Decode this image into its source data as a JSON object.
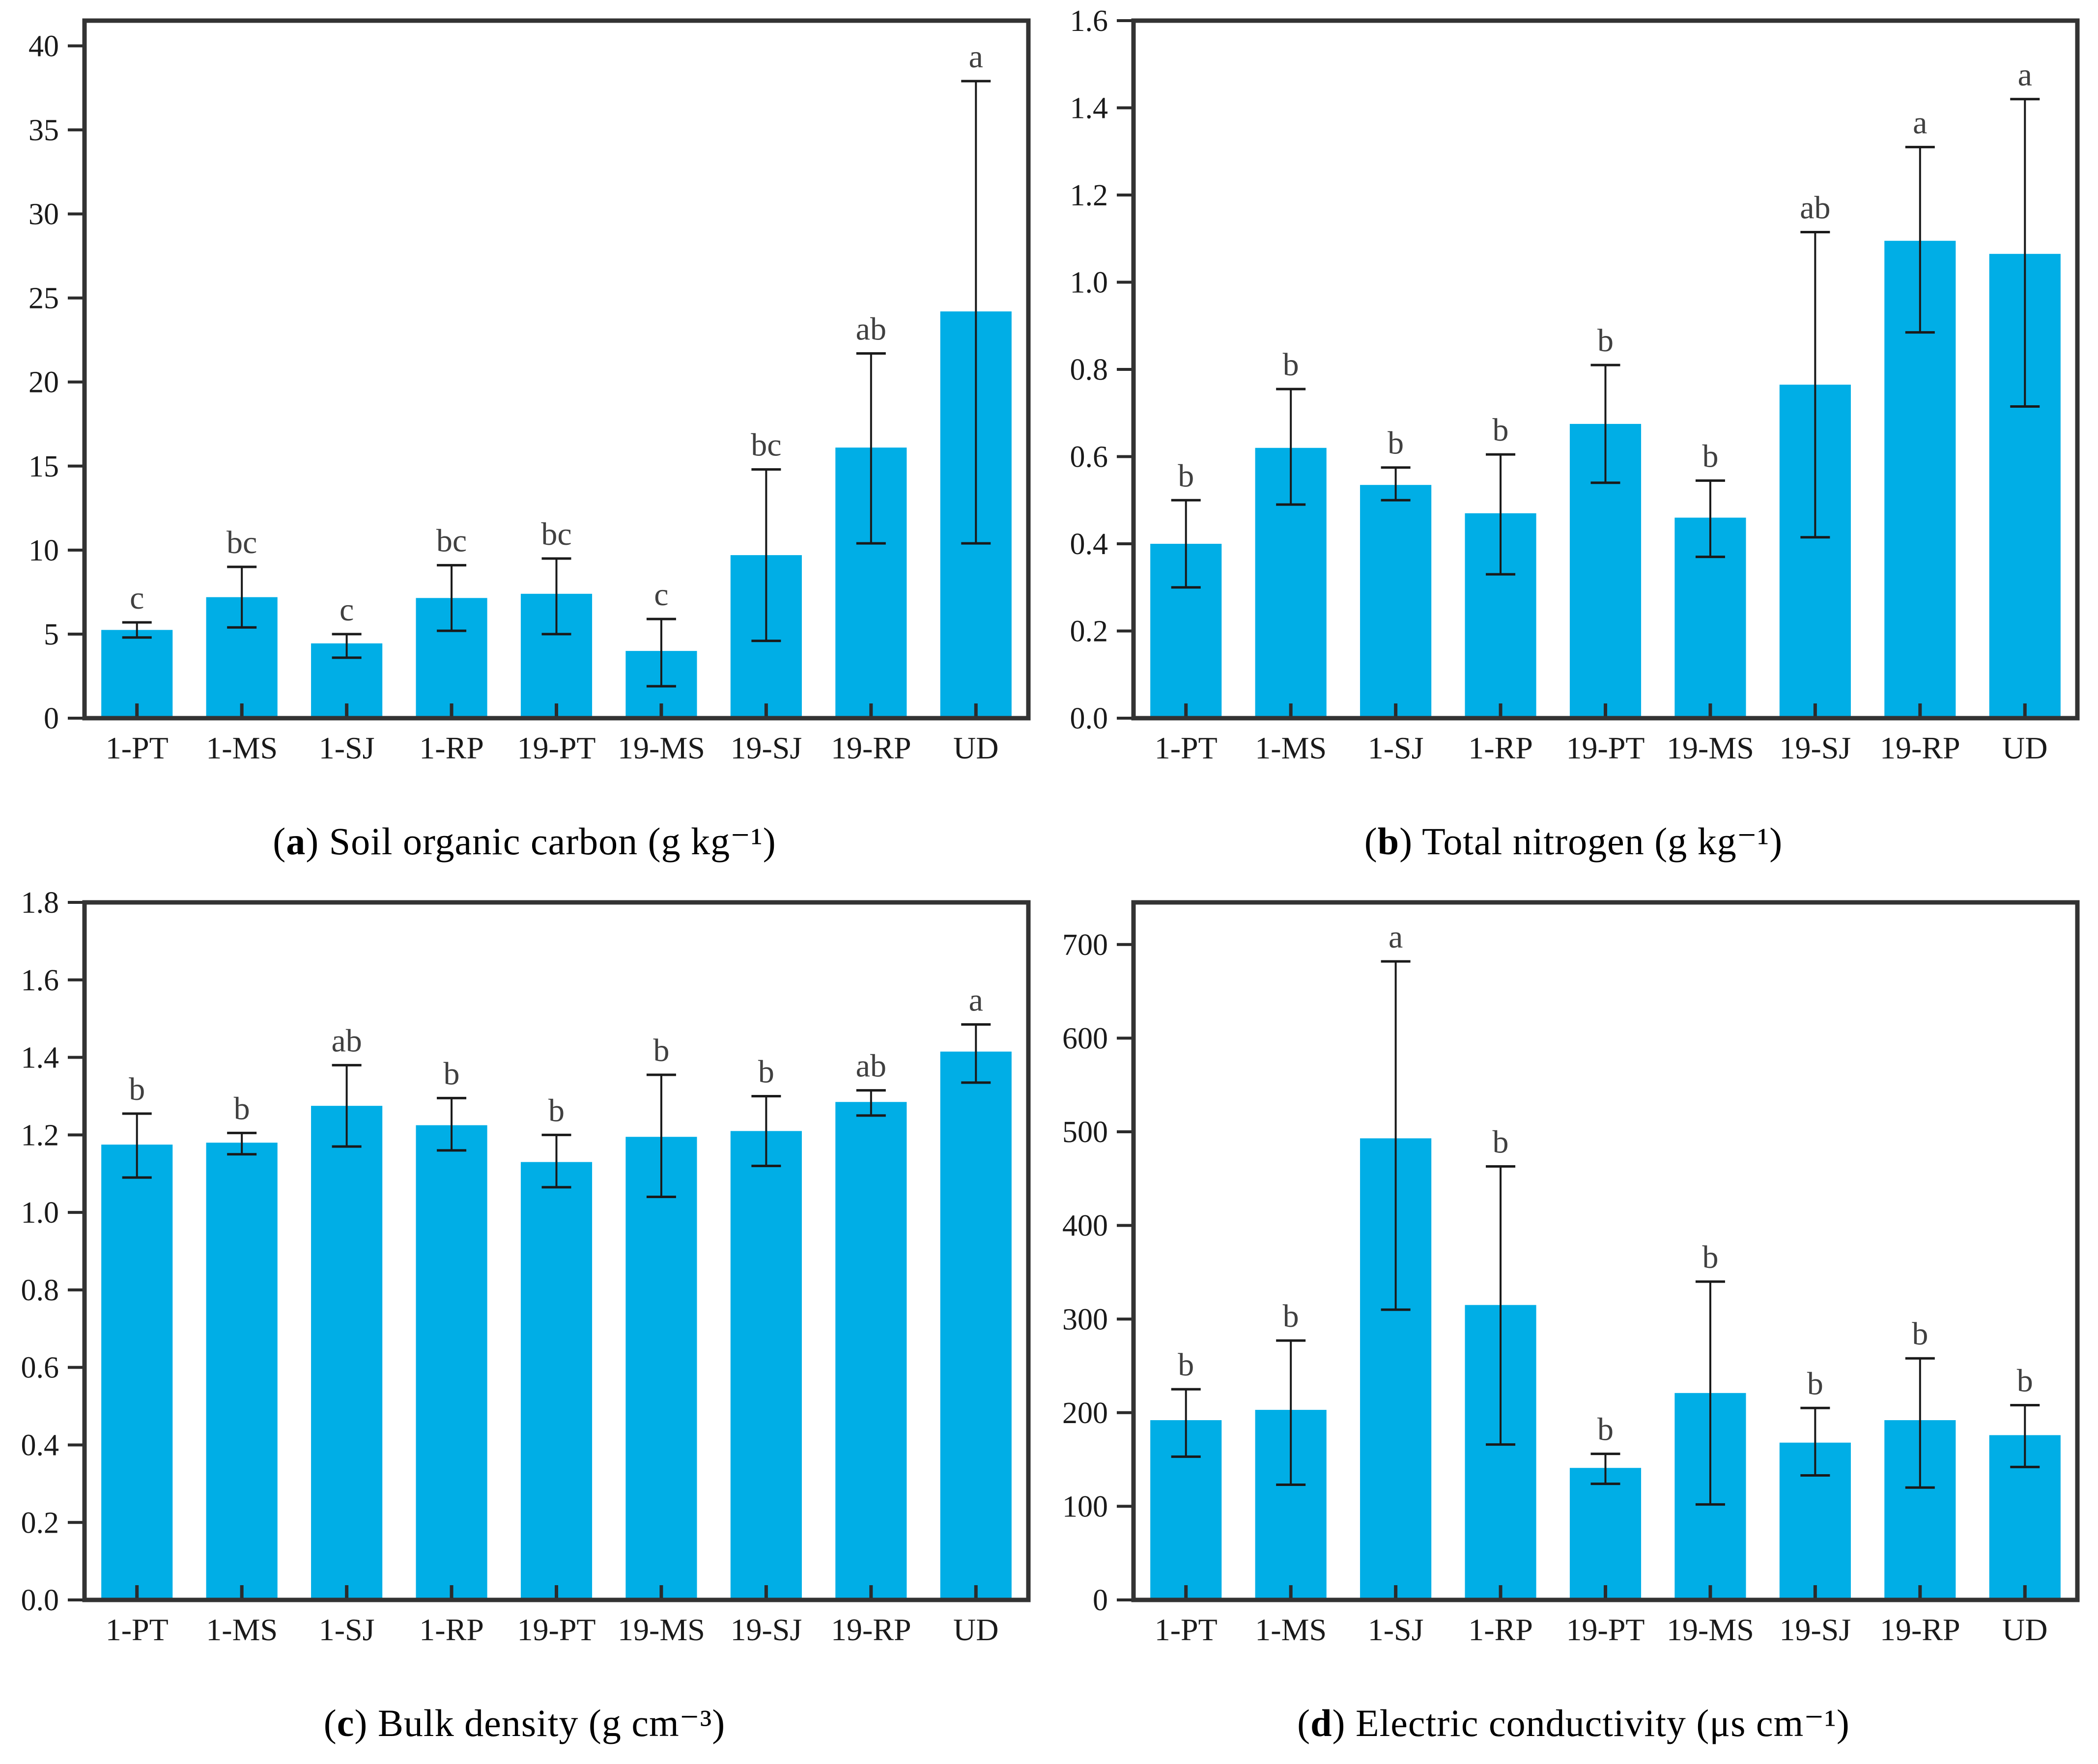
{
  "style": {
    "bar_color": "#00AEE6",
    "axis_color": "#333333",
    "tick_color": "#2b2b2b",
    "error_color": "#1a1a1a",
    "letter_color": "#404040",
    "text_color": "#1a1a1a"
  },
  "chart_data": [
    {
      "type": "bar",
      "panel": "a",
      "caption": {
        "pre": "(",
        "letter": "a",
        "post": ") Soil organic carbon (g kg⁻¹)"
      },
      "categories": [
        "1-PT",
        "1-MS",
        "1-SJ",
        "1-RP",
        "19-PT",
        "19-MS",
        "19-SJ",
        "19-RP",
        "UD"
      ],
      "values": [
        5.25,
        7.2,
        4.45,
        7.15,
        7.4,
        4.0,
        9.7,
        16.1,
        24.2
      ],
      "err_low": [
        4.8,
        5.4,
        3.6,
        5.2,
        5.0,
        1.9,
        4.6,
        10.4,
        10.4
      ],
      "err_high": [
        5.7,
        9.0,
        5.0,
        9.1,
        9.5,
        5.9,
        14.8,
        21.7,
        37.9
      ],
      "letters": [
        "c",
        "bc",
        "c",
        "bc",
        "bc",
        "c",
        "bc",
        "ab",
        "a"
      ],
      "ylim": [
        0,
        41.5
      ],
      "grid": false,
      "legend": "none",
      "yticks": [
        {
          "v": 0,
          "t": "0"
        },
        {
          "v": 5,
          "t": "5"
        },
        {
          "v": 10,
          "t": "10"
        },
        {
          "v": 15,
          "t": "15"
        },
        {
          "v": 20,
          "t": "20"
        },
        {
          "v": 25,
          "t": "25"
        },
        {
          "v": 30,
          "t": "30"
        },
        {
          "v": 35,
          "t": "35"
        },
        {
          "v": 40,
          "t": "40"
        }
      ]
    },
    {
      "type": "bar",
      "panel": "b",
      "caption": {
        "pre": "(",
        "letter": "b",
        "post": ") Total nitrogen (g kg⁻¹)"
      },
      "categories": [
        "1-PT",
        "1-MS",
        "1-SJ",
        "1-RP",
        "19-PT",
        "19-MS",
        "19-SJ",
        "19-RP",
        "UD"
      ],
      "values": [
        0.4,
        0.62,
        0.535,
        0.47,
        0.675,
        0.46,
        0.765,
        1.095,
        1.065
      ],
      "err_low": [
        0.3,
        0.49,
        0.5,
        0.33,
        0.54,
        0.37,
        0.415,
        0.885,
        0.715
      ],
      "err_high": [
        0.5,
        0.755,
        0.575,
        0.605,
        0.81,
        0.545,
        1.115,
        1.31,
        1.42
      ],
      "letters": [
        "b",
        "b",
        "b",
        "b",
        "b",
        "b",
        "ab",
        "a",
        "a"
      ],
      "ylim": [
        0,
        1.6
      ],
      "grid": false,
      "legend": "none",
      "yticks": [
        {
          "v": 0.0,
          "t": "0.0"
        },
        {
          "v": 0.2,
          "t": "0.2"
        },
        {
          "v": 0.4,
          "t": "0.4"
        },
        {
          "v": 0.6,
          "t": "0.6"
        },
        {
          "v": 0.8,
          "t": "0.8"
        },
        {
          "v": 1.0,
          "t": "1.0"
        },
        {
          "v": 1.2,
          "t": "1.2"
        },
        {
          "v": 1.4,
          "t": "1.4"
        },
        {
          "v": 1.6,
          "t": "1.6"
        }
      ]
    },
    {
      "type": "bar",
      "panel": "c",
      "caption": {
        "pre": "(",
        "letter": "c",
        "post": ") Bulk density (g cm⁻³)"
      },
      "categories": [
        "1-PT",
        "1-MS",
        "1-SJ",
        "1-RP",
        "19-PT",
        "19-MS",
        "19-SJ",
        "19-RP",
        "UD"
      ],
      "values": [
        1.175,
        1.18,
        1.275,
        1.225,
        1.13,
        1.195,
        1.21,
        1.285,
        1.415
      ],
      "err_low": [
        1.09,
        1.15,
        1.17,
        1.16,
        1.065,
        1.04,
        1.12,
        1.25,
        1.335
      ],
      "err_high": [
        1.255,
        1.205,
        1.38,
        1.295,
        1.2,
        1.355,
        1.3,
        1.315,
        1.485
      ],
      "letters": [
        "b",
        "b",
        "ab",
        "b",
        "b",
        "b",
        "b",
        "ab",
        "a"
      ],
      "ylim": [
        0,
        1.8
      ],
      "grid": false,
      "legend": "none",
      "yticks": [
        {
          "v": 0.0,
          "t": "0.0"
        },
        {
          "v": 0.2,
          "t": "0.2"
        },
        {
          "v": 0.4,
          "t": "0.4"
        },
        {
          "v": 0.6,
          "t": "0.6"
        },
        {
          "v": 0.8,
          "t": "0.8"
        },
        {
          "v": 1.0,
          "t": "1.0"
        },
        {
          "v": 1.2,
          "t": "1.2"
        },
        {
          "v": 1.4,
          "t": "1.4"
        },
        {
          "v": 1.6,
          "t": "1.6"
        },
        {
          "v": 1.8,
          "t": "1.8"
        }
      ]
    },
    {
      "type": "bar",
      "panel": "d",
      "caption": {
        "pre": "(",
        "letter": "d",
        "post": ") Electric conductivity (μs cm⁻¹)"
      },
      "categories": [
        "1-PT",
        "1-MS",
        "1-SJ",
        "1-RP",
        "19-PT",
        "19-MS",
        "19-SJ",
        "19-RP",
        "UD"
      ],
      "values": [
        192,
        203,
        493,
        315,
        141,
        221,
        168,
        192,
        176
      ],
      "err_low": [
        153,
        123,
        310,
        166,
        124,
        102,
        133,
        120,
        142
      ],
      "err_high": [
        225,
        277,
        682,
        463,
        156,
        340,
        205,
        258,
        208
      ],
      "letters": [
        "b",
        "b",
        "a",
        "b",
        "b",
        "b",
        "b",
        "b",
        "b"
      ],
      "ylim": [
        0,
        745
      ],
      "grid": false,
      "legend": "none",
      "yticks": [
        {
          "v": 0,
          "t": "0"
        },
        {
          "v": 100,
          "t": "100"
        },
        {
          "v": 200,
          "t": "200"
        },
        {
          "v": 300,
          "t": "300"
        },
        {
          "v": 400,
          "t": "400"
        },
        {
          "v": 500,
          "t": "500"
        },
        {
          "v": 600,
          "t": "600"
        },
        {
          "v": 700,
          "t": "700"
        }
      ]
    }
  ]
}
